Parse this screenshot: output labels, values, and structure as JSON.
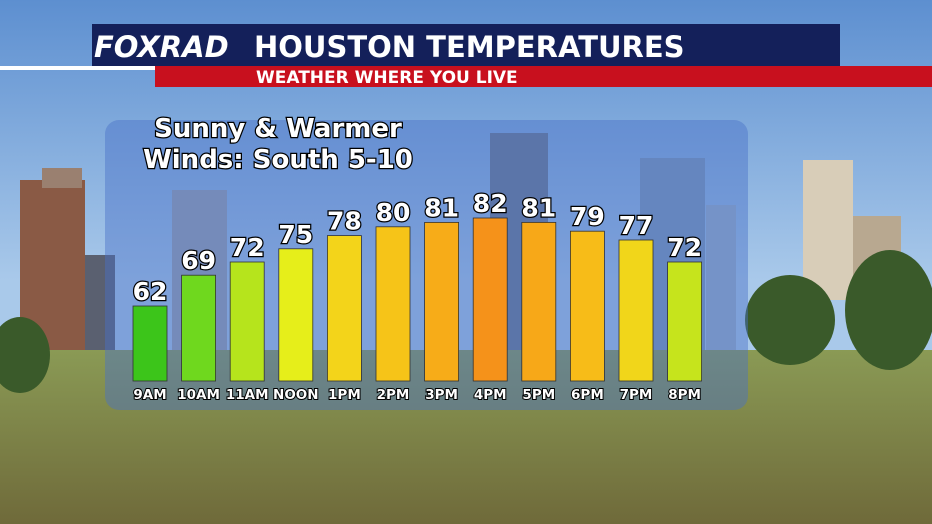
{
  "logo": "FOXRAD",
  "chart_data": {
    "type": "bar",
    "title": "HOUSTON TEMPERATURES",
    "subtitle": "WEATHER WHERE YOU LIVE",
    "annotations": [
      "Sunny & Warmer",
      "Winds: South 5-10"
    ],
    "categories": [
      "9AM",
      "10AM",
      "11AM",
      "NOON",
      "1PM",
      "2PM",
      "3PM",
      "4PM",
      "5PM",
      "6PM",
      "7PM",
      "8PM"
    ],
    "values": [
      62,
      69,
      72,
      75,
      78,
      80,
      81,
      82,
      81,
      79,
      77,
      72
    ],
    "colors": [
      "#3cc51a",
      "#6fd81e",
      "#b6e41c",
      "#e6ee1a",
      "#f3d41a",
      "#f6c418",
      "#f7ac18",
      "#f5921a",
      "#f7a818",
      "#f7bc18",
      "#f1d61a",
      "#c6e41c"
    ]
  }
}
